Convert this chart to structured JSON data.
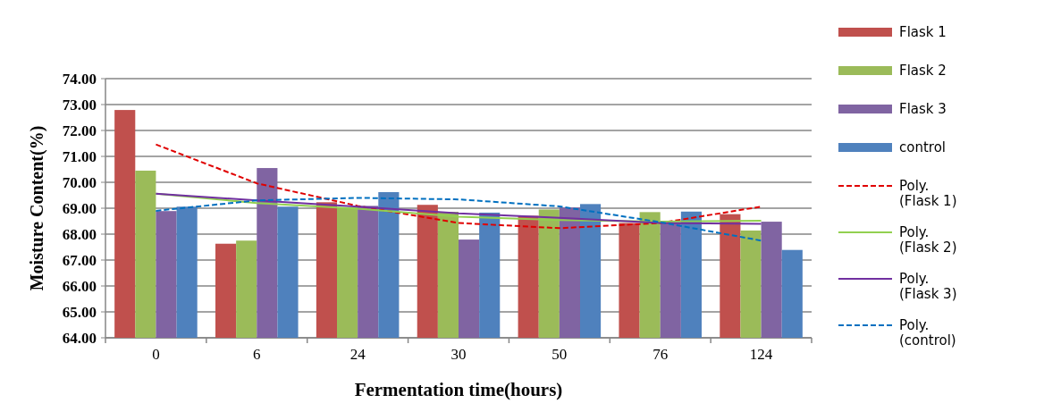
{
  "chart_data": {
    "type": "bar",
    "xlabel": "Fermentation time(hours)",
    "ylabel": "Moisture Content(%)",
    "categories": [
      "0",
      "6",
      "24",
      "30",
      "50",
      "76",
      "124"
    ],
    "series": [
      {
        "name": "Flask 1",
        "color": "#c0504d",
        "values": [
          72.79,
          67.63,
          69.23,
          69.13,
          68.71,
          68.43,
          68.77
        ]
      },
      {
        "name": "Flask 2",
        "color": "#9bbb59",
        "values": [
          70.45,
          67.75,
          69.03,
          68.86,
          68.95,
          68.85,
          68.14
        ]
      },
      {
        "name": "Flask 3",
        "color": "#8064a2",
        "values": [
          68.89,
          70.55,
          69.09,
          67.79,
          69.03,
          68.45,
          68.48
        ]
      },
      {
        "name": "control",
        "color": "#4f81bd",
        "values": [
          69.06,
          69.06,
          69.62,
          68.83,
          69.16,
          68.87,
          67.39
        ]
      },
      {
        "name": "Poly. (Flask 1)",
        "type": "line",
        "line_style": "dashed",
        "color": "#e00000",
        "values": [
          71.46,
          69.96,
          69.09,
          68.43,
          68.23,
          68.43,
          69.06
        ]
      },
      {
        "name": "Poly. (Flask 2)",
        "type": "line",
        "line_style": "solid",
        "color": "#92d050",
        "values": [
          69.56,
          69.2,
          68.98,
          68.67,
          68.54,
          68.48,
          68.52
        ]
      },
      {
        "name": "Poly. (Flask 3)",
        "type": "line",
        "line_style": "solid",
        "color": "#7030a0",
        "values": [
          69.56,
          69.3,
          69.06,
          68.8,
          68.63,
          68.43,
          68.4
        ]
      },
      {
        "name": "Poly. (control)",
        "type": "line",
        "line_style": "dashed",
        "color": "#0070c0",
        "values": [
          68.9,
          69.3,
          69.4,
          69.34,
          69.07,
          68.46,
          67.75
        ]
      }
    ],
    "ylim": [
      64,
      74
    ],
    "yticks": [
      {
        "value": 64,
        "label": "64.00"
      },
      {
        "value": 65,
        "label": "65.00"
      },
      {
        "value": 66,
        "label": "66.00"
      },
      {
        "value": 67,
        "label": "67.00"
      },
      {
        "value": 68,
        "label": "68.00"
      },
      {
        "value": 69,
        "label": "69.00"
      },
      {
        "value": 70,
        "label": "70.00"
      },
      {
        "value": 71,
        "label": "71.00"
      },
      {
        "value": 72,
        "label": "72.00"
      },
      {
        "value": 73,
        "label": "73.00"
      },
      {
        "value": 74,
        "label": "74.00"
      }
    ],
    "grid": "y",
    "legend": "right"
  }
}
